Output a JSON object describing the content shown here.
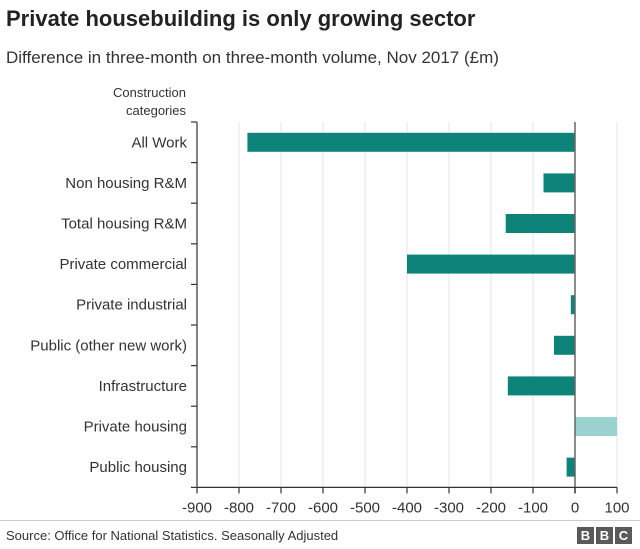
{
  "chart_data": {
    "type": "bar",
    "orientation": "horizontal",
    "title": "Private housebuilding is only growing sector",
    "subtitle": "Difference in three-month on three-month volume, Nov 2017 (£m)",
    "category_header": "Construction categories",
    "categories": [
      "All Work",
      "Non housing R&M",
      "Total housing R&M",
      "Private commercial",
      "Private industrial",
      "Public (other new work)",
      "Infrastructure",
      "Private housing",
      "Public housing"
    ],
    "values": [
      -780,
      -75,
      -165,
      -400,
      -10,
      -50,
      -160,
      100,
      -20
    ],
    "colors": {
      "negative": "#0d837a",
      "positive": "#9bd1cf",
      "grid": "#e4e4e4",
      "zero_line": "#666666"
    },
    "xlim": [
      -900,
      100
    ],
    "xticks": [
      "-900",
      "-800",
      "-700",
      "-600",
      "-500",
      "-400",
      "-300",
      "-200",
      "-100",
      "0",
      "100"
    ],
    "source": "Source: Office for National Statistics. Seasonally Adjusted",
    "logo": [
      "B",
      "B",
      "C"
    ]
  }
}
